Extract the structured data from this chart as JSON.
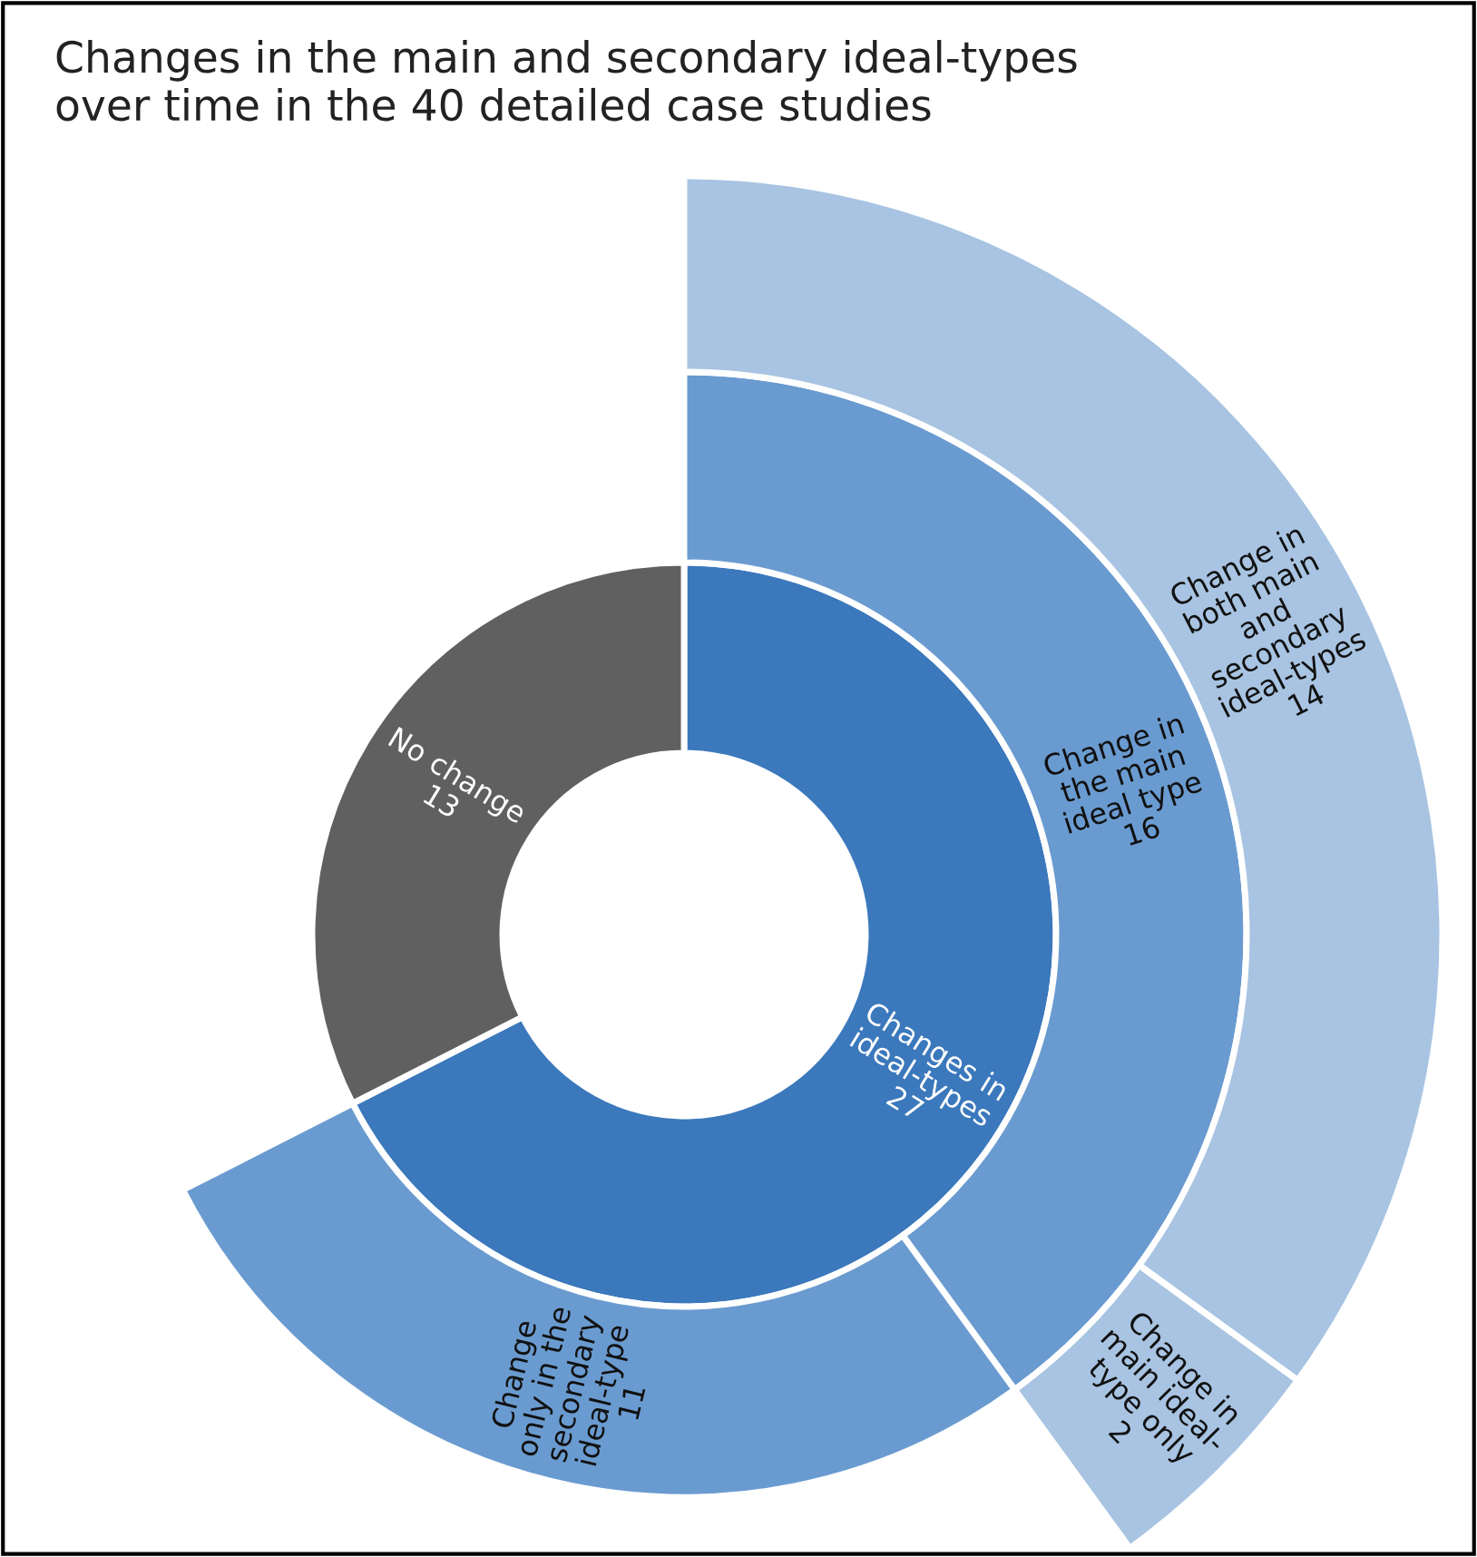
{
  "chart_data": {
    "type": "other",
    "title": "Changes in the main and secondary ideal-types\nover time in the 40 detailed case studies",
    "categories": [
      "Changes in\nideal-types",
      "Change in\nthe main\nideal type",
      "Change in\nboth main\nand\nsecondary\nideal-types",
      "Change in\nmain ideal-\ntype only",
      "Change\nonly in the\nsecondary\nideal-type",
      "No change"
    ],
    "series": [
      {
        "values": [
          27,
          null,
          null,
          null,
          null,
          13
        ],
        "colors": [
          "#3b78bc",
          null,
          null,
          null,
          null,
          "#606060"
        ]
      },
      {
        "values": [
          null,
          16,
          null,
          null,
          11,
          null
        ],
        "colors": [
          null,
          "#6a9bd0",
          null,
          null,
          "#6a9bd0",
          null
        ]
      },
      {
        "values": [
          null,
          null,
          14,
          2,
          null,
          null
        ],
        "colors": [
          null,
          null,
          "#a8c4e2",
          "#a8c4e2",
          null,
          null
        ]
      }
    ],
    "data_labels": true
  }
}
